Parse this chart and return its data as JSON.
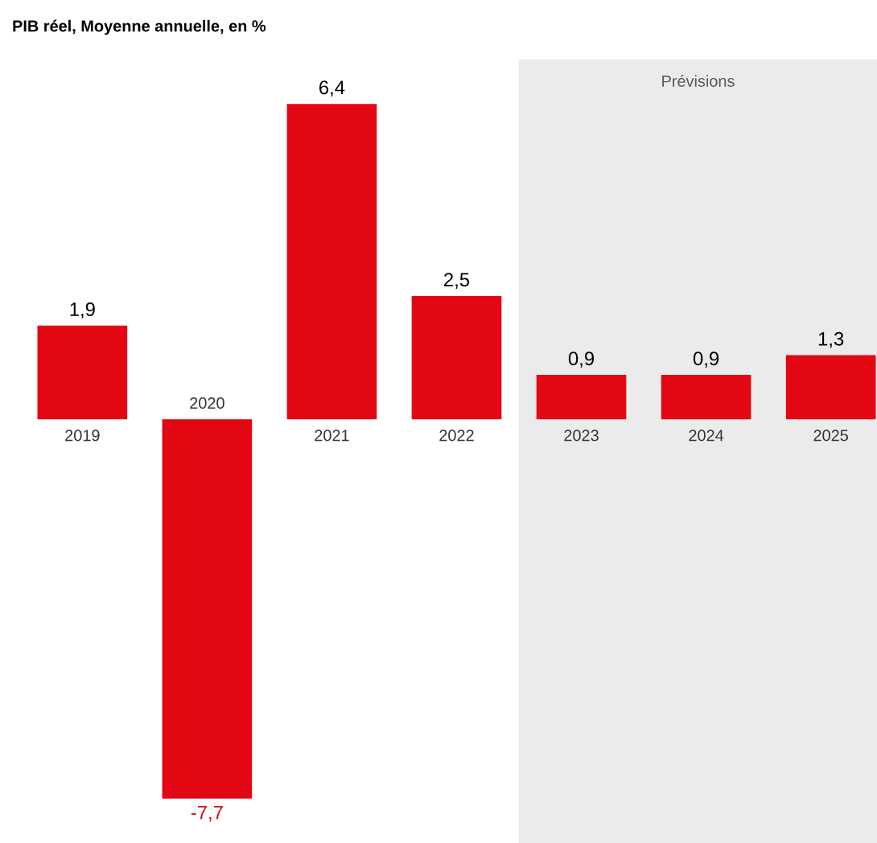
{
  "chart_data": {
    "type": "bar",
    "title": "**PIB réel, Moyenne annuelle, en %**",
    "categories": [
      "2019",
      "2020",
      "2021",
      "2022",
      "2023",
      "2024",
      "2025"
    ],
    "values": [
      1.9,
      -7.7,
      6.4,
      2.5,
      0.9,
      0.9,
      1.3
    ],
    "value_labels": [
      "1,9",
      "-7,7",
      "6,4",
      "2,5",
      "0,9",
      "0,9",
      "1,3"
    ],
    "color": "#e30613",
    "ylim": [
      -8.6,
      7.3
    ],
    "bands": [
      {
        "axis": "x",
        "from": "2023",
        "to": "2025",
        "label": "Prévisions",
        "color": "#ebebeb"
      }
    ]
  }
}
